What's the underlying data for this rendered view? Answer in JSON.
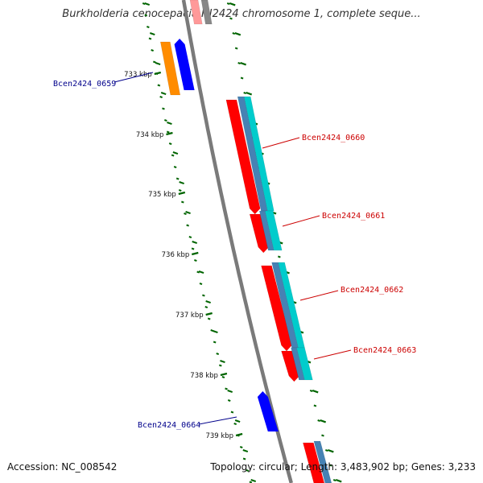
{
  "title": "Burkholderia cenocepacia HI2424 chromosome 1, complete seque...",
  "footer": {
    "accession": "Accession: NC_008542",
    "topology": "Topology: circular; Length: 3,483,902 bp; Genes: 3,233"
  },
  "colors": {
    "backbone": "#7a7a7a",
    "ticks": "#006400",
    "forward_gene": "#ff0000",
    "forward_gene_dark": "#cc0000",
    "reverse_gene": "#0000ff",
    "other_gene": "#ff8c00",
    "cds_teal": "#00cccc",
    "cds_steel": "#4682b4",
    "label_red": "#cc0000",
    "label_blue": "#00008b"
  },
  "ruler": {
    "ticks": [
      "733 kbp",
      "734 kbp",
      "735 kbp",
      "736 kbp",
      "737 kbp",
      "738 kbp",
      "739 kbp"
    ]
  },
  "genes": [
    {
      "label": "Bcen2424_0659",
      "strand": "reverse"
    },
    {
      "label": "Bcen2424_0660",
      "strand": "forward"
    },
    {
      "label": "Bcen2424_0661",
      "strand": "forward"
    },
    {
      "label": "Bcen2424_0662",
      "strand": "forward"
    },
    {
      "label": "Bcen2424_0663",
      "strand": "forward"
    },
    {
      "label": "Bcen2424_0664",
      "strand": "reverse"
    }
  ]
}
